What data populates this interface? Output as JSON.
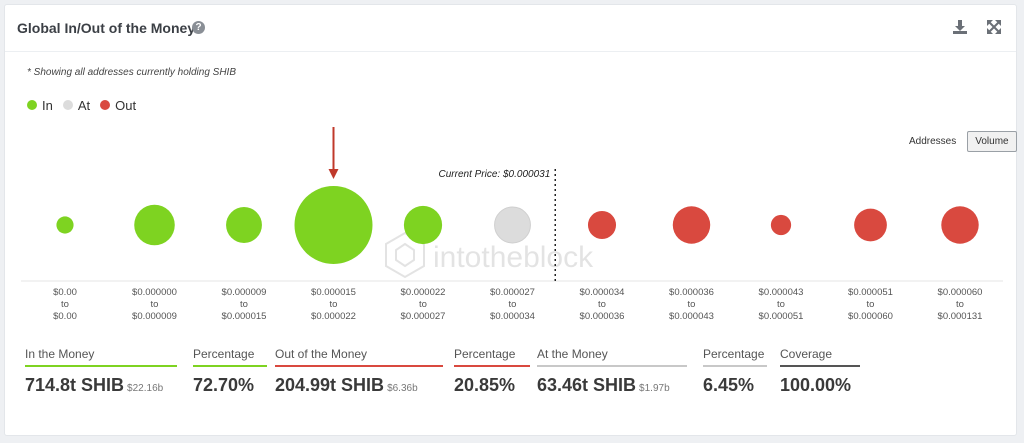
{
  "header": {
    "title": "Global In/Out of the Money",
    "help_glyph": "?"
  },
  "note": "* Showing all addresses currently holding SHIB",
  "legend": [
    {
      "label": "In",
      "color": "#7ed321"
    },
    {
      "label": "At",
      "color": "#dcdcdc"
    },
    {
      "label": "Out",
      "color": "#d9493f"
    }
  ],
  "toggle": {
    "options": [
      "Addresses",
      "Volume"
    ],
    "active": "Volume"
  },
  "watermark": "intotheblock",
  "chart_data": {
    "type": "scatter",
    "encoding": "bubble size = volume (SHIB) per price range",
    "current_price_label": "Current Price: $0.000031",
    "current_price_between": [
      5,
      6
    ],
    "highlight_index": 3,
    "categories": [
      {
        "from": "$0.00",
        "to": "$0.00",
        "status": "in",
        "relative_size": 0.22
      },
      {
        "from": "$0.000000",
        "to": "$0.000009",
        "status": "in",
        "relative_size": 0.52
      },
      {
        "from": "$0.000009",
        "to": "$0.000015",
        "status": "in",
        "relative_size": 0.46
      },
      {
        "from": "$0.000015",
        "to": "$0.000022",
        "status": "in",
        "relative_size": 1.0
      },
      {
        "from": "$0.000022",
        "to": "$0.000027",
        "status": "in",
        "relative_size": 0.49
      },
      {
        "from": "$0.000027",
        "to": "$0.000034",
        "status": "at",
        "relative_size": 0.46
      },
      {
        "from": "$0.000034",
        "to": "$0.000036",
        "status": "out",
        "relative_size": 0.36
      },
      {
        "from": "$0.000036",
        "to": "$0.000043",
        "status": "out",
        "relative_size": 0.48
      },
      {
        "from": "$0.000043",
        "to": "$0.000051",
        "status": "out",
        "relative_size": 0.26
      },
      {
        "from": "$0.000051",
        "to": "$0.000060",
        "status": "out",
        "relative_size": 0.42
      },
      {
        "from": "$0.000060",
        "to": "$0.000131",
        "status": "out",
        "relative_size": 0.48
      }
    ],
    "to_word": "to"
  },
  "stats": [
    {
      "label": "In the Money",
      "value": "714.8t SHIB",
      "sub": "$22.16b",
      "color": "#7ed321"
    },
    {
      "label": "Percentage",
      "value": "72.70%",
      "sub": "",
      "color": "#7ed321"
    },
    {
      "label": "Out of the Money",
      "value": "204.99t SHIB",
      "sub": "$6.36b",
      "color": "#d9493f"
    },
    {
      "label": "Percentage",
      "value": "20.85%",
      "sub": "",
      "color": "#d9493f"
    },
    {
      "label": "At the Money",
      "value": "63.46t SHIB",
      "sub": "$1.97b",
      "color": "#c8c8c8"
    },
    {
      "label": "Percentage",
      "value": "6.45%",
      "sub": "",
      "color": "#c8c8c8"
    },
    {
      "label": "Coverage",
      "value": "100.00%",
      "sub": "",
      "color": "#555555"
    }
  ],
  "colors": {
    "in": "#7ed321",
    "at": "#dcdcdc",
    "out": "#d9493f",
    "arrow": "#c0392b"
  }
}
